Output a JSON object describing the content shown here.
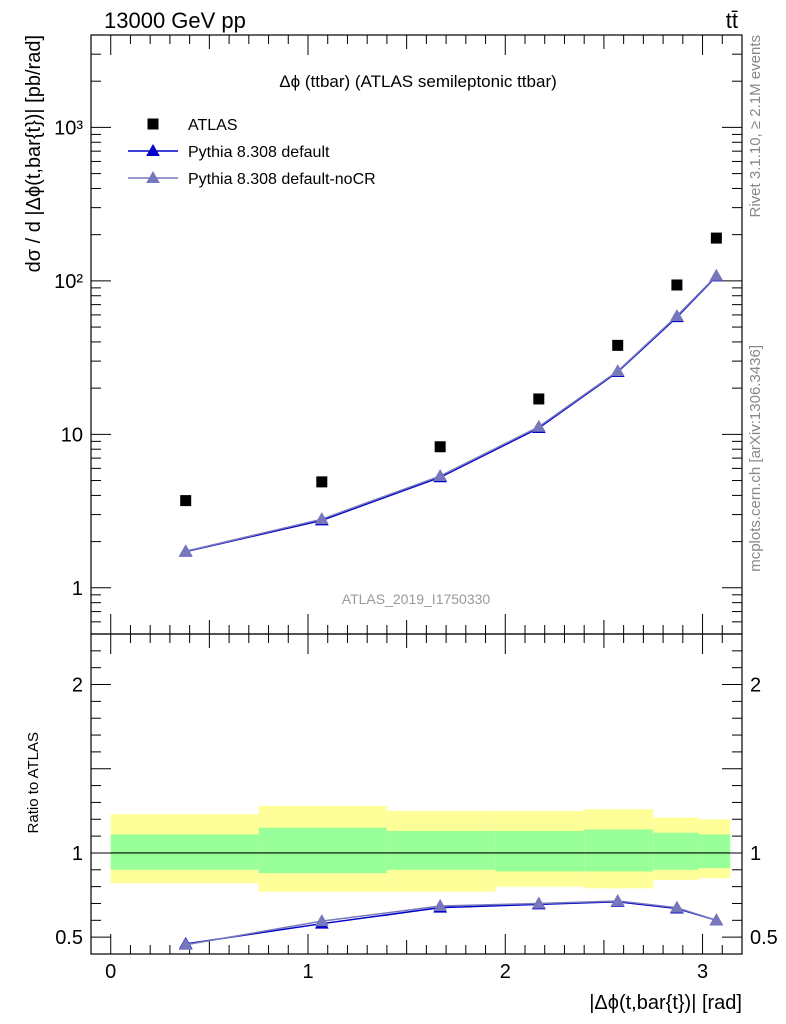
{
  "header": {
    "left_label": "13000 GeV pp",
    "right_label": "tt̄"
  },
  "chart_data": {
    "type": "scatter",
    "title": "Δϕ (ttbar) (ATLAS semileptonic ttbar)",
    "xlabel": "|Δϕ(t,bar{t})| [rad]",
    "ylabel": "dσ / d |Δϕ(t,bar{t})| [pb/rad]",
    "ratio_ylabel": "Ratio to ATLAS",
    "analysis_tag": "ATLAS_2019_I1750330",
    "side_label_top": "Rivet 3.1.10, ≥ 2.1M events",
    "side_label_bottom": "mcplots.cern.ch [arXiv:1306.3436]",
    "xlim": [
      -0.1,
      3.2
    ],
    "ylim": [
      0.5,
      4000
    ],
    "yscale": "log",
    "ratio_ylim": [
      0.4,
      2.3
    ],
    "main_ytick_labels": [
      "1",
      "10",
      "10²",
      "10³"
    ],
    "ratio_ytick_labels": [
      "0.5",
      "1",
      "2"
    ],
    "xtick_labels": [
      "0",
      "1",
      "2",
      "3"
    ],
    "legend_position": "top-left",
    "bins": [
      {
        "xlo": 0.0,
        "xhi": 0.75,
        "x": 0.38
      },
      {
        "xlo": 0.75,
        "xhi": 1.4,
        "x": 1.07
      },
      {
        "xlo": 1.4,
        "xhi": 1.95,
        "x": 1.67
      },
      {
        "xlo": 1.95,
        "xhi": 2.4,
        "x": 2.17
      },
      {
        "xlo": 2.4,
        "xhi": 2.75,
        "x": 2.57
      },
      {
        "xlo": 2.75,
        "xhi": 2.98,
        "x": 2.87
      },
      {
        "xlo": 2.98,
        "xhi": 3.14,
        "x": 3.07
      }
    ],
    "series": [
      {
        "name": "ATLAS",
        "marker": "square",
        "color": "#000000",
        "values": [
          3.7,
          4.9,
          8.3,
          17.0,
          38.0,
          94.0,
          190.0
        ]
      },
      {
        "name": "Pythia 8.308 default",
        "marker": "triangle",
        "color": "#0000cc",
        "values": [
          1.72,
          2.75,
          5.25,
          11.0,
          25.5,
          58.0,
          107.0
        ],
        "ratio": [
          0.46,
          0.58,
          0.675,
          0.695,
          0.71,
          0.67,
          0.6
        ]
      },
      {
        "name": "Pythia 8.308 default-noCR",
        "marker": "triangle",
        "color": "#7777bb",
        "values": [
          1.73,
          2.8,
          5.35,
          11.2,
          25.8,
          59.0,
          108.0
        ],
        "ratio": [
          0.455,
          0.595,
          0.685,
          0.7,
          0.715,
          0.675,
          0.6
        ]
      }
    ],
    "uncertainty_bands": {
      "stat_color": "#99ff99",
      "total_color": "#ffff99",
      "stat": [
        [
          0.9,
          1.11
        ],
        [
          0.88,
          1.15
        ],
        [
          0.9,
          1.13
        ],
        [
          0.89,
          1.13
        ],
        [
          0.89,
          1.14
        ],
        [
          0.9,
          1.12
        ],
        [
          0.91,
          1.11
        ]
      ],
      "total": [
        [
          0.82,
          1.23
        ],
        [
          0.77,
          1.28
        ],
        [
          0.77,
          1.25
        ],
        [
          0.8,
          1.25
        ],
        [
          0.79,
          1.26
        ],
        [
          0.84,
          1.21
        ],
        [
          0.85,
          1.2
        ]
      ]
    }
  }
}
